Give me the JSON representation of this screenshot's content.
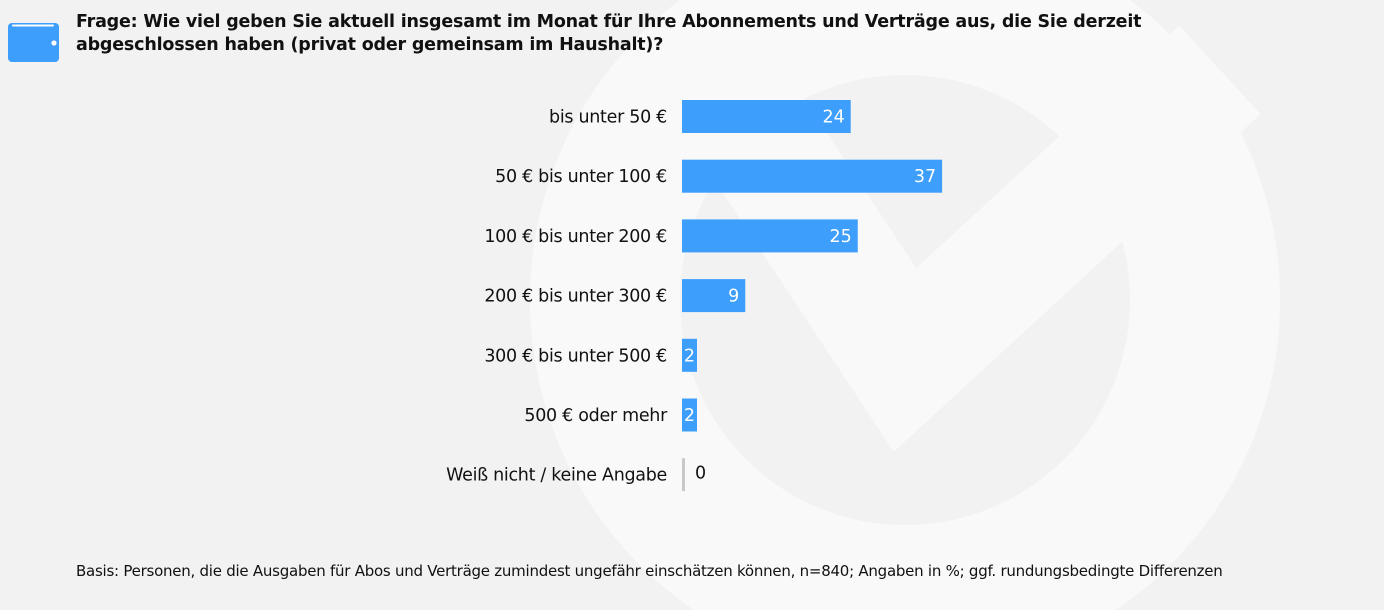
{
  "header": {
    "icon": "wallet-icon",
    "title_line1": "Frage: Wie viel geben Sie aktuell insgesamt im Monat für Ihre Abonnements und Verträge aus, die Sie derzeit",
    "title_line2": "abgeschlossen haben (privat oder gemeinsam im Haushalt)?"
  },
  "footer": {
    "note": "Basis: Personen, die die Ausgaben für Abos und Verträge zumindest ungefähr einschätzen können,  n=840; Angaben in %; ggf. rundungsbedingte Differenzen"
  },
  "colors": {
    "bar": "#3d9efb",
    "zero_bar": "#c8c8c8",
    "background": "#f2f2f2",
    "watermark": "#fafafa"
  },
  "chart_data": {
    "type": "bar",
    "orientation": "horizontal",
    "title": "Frage: Wie viel geben Sie aktuell insgesamt im Monat für Ihre Abonnements und Verträge aus, die Sie derzeit abgeschlossen haben (privat oder gemeinsam im Haushalt)?",
    "xlabel": "",
    "ylabel": "",
    "unit": "%",
    "categories": [
      "bis unter 50 €",
      "50 € bis unter 100 €",
      "100 € bis unter 200 €",
      "200 € bis unter 300 €",
      "300 € bis unter 500 €",
      "500 € oder mehr",
      "Weiß nicht / keine Angabe"
    ],
    "values": [
      24,
      37,
      25,
      9,
      2,
      2,
      0
    ],
    "xlim": [
      0,
      100
    ],
    "grid": false,
    "legend": "none",
    "data_labels": true
  }
}
